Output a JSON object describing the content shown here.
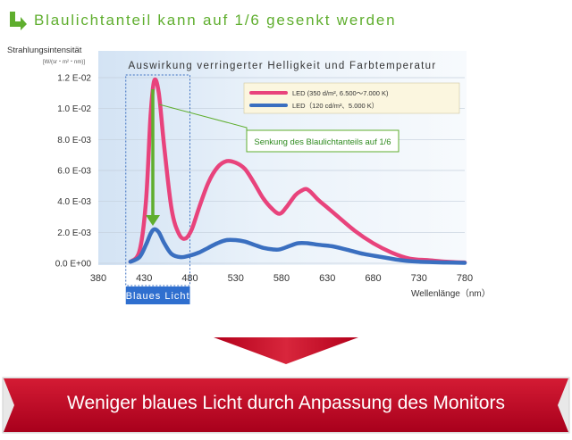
{
  "header": {
    "title": "Blaulichtanteil kann auf 1/6 gesenkt werden",
    "icon": "arrow-down-right-icon",
    "color": "#5fae2e"
  },
  "chart_data": {
    "type": "line",
    "title": "Auswirkung verringerter Helligkeit und Farbtemperatur",
    "ylabel": "Strahlungsintensität",
    "yunit": "[W/(sr・m²・nm)]",
    "xlabel": "Wellenlänge（nm）",
    "xlim": [
      380,
      780
    ],
    "ylim": [
      0,
      0.012
    ],
    "x_ticks": [
      "380",
      "430",
      "480",
      "530",
      "580",
      "630",
      "680",
      "730",
      "780"
    ],
    "y_ticks": [
      "0.0 E+00",
      "2.0 E-03",
      "4.0 E-03",
      "6.0 E-03",
      "8.0 E-03",
      "1.0 E-02",
      "1.2 E-02"
    ],
    "grid": true,
    "series": [
      {
        "name": "LED (350 d/m², 6.500〜7.000 K)",
        "color": "#e8437c",
        "x": [
          415,
          425,
          432,
          437,
          441,
          446,
          452,
          460,
          468,
          475,
          482,
          490,
          500,
          510,
          520,
          530,
          540,
          550,
          560,
          570,
          578,
          585,
          595,
          602,
          607,
          612,
          620,
          630,
          640,
          660,
          680,
          700,
          720,
          740,
          760,
          780
        ],
        "y": [
          0.0001,
          0.0008,
          0.004,
          0.0095,
          0.0118,
          0.011,
          0.0075,
          0.0035,
          0.0019,
          0.0016,
          0.0022,
          0.0036,
          0.0052,
          0.0062,
          0.0066,
          0.0065,
          0.0061,
          0.0052,
          0.0042,
          0.0035,
          0.0032,
          0.0036,
          0.0044,
          0.0047,
          0.0048,
          0.0046,
          0.0041,
          0.0036,
          0.0031,
          0.0021,
          0.0013,
          0.0007,
          0.0003,
          0.0002,
          0.0001,
          5e-05
        ]
      },
      {
        "name": "LED（120 cd/m²、5.000 K）",
        "color": "#3a6fc0",
        "x": [
          415,
          425,
          432,
          437,
          441,
          446,
          452,
          460,
          470,
          480,
          490,
          500,
          510,
          520,
          530,
          540,
          550,
          560,
          570,
          578,
          588,
          598,
          608,
          620,
          635,
          650,
          670,
          690,
          710,
          730,
          760,
          780
        ],
        "y": [
          0.0001,
          0.0004,
          0.0012,
          0.0019,
          0.0022,
          0.002,
          0.0013,
          0.0006,
          0.0004,
          0.0005,
          0.0007,
          0.001,
          0.0013,
          0.0015,
          0.0015,
          0.0014,
          0.0012,
          0.001,
          0.0009,
          0.0009,
          0.0011,
          0.0013,
          0.0013,
          0.0012,
          0.0011,
          0.0009,
          0.0006,
          0.0004,
          0.0002,
          0.0001,
          5e-05,
          3e-05
        ]
      }
    ],
    "annotation": "Senkung des Blaulichtanteils auf 1/6",
    "highlight_band": {
      "label": "Blaues Licht",
      "from": 410,
      "to": 480
    }
  },
  "banner": {
    "text": "Weniger blaues Licht durch Anpassung des Monitors",
    "color": "#c8102e"
  }
}
